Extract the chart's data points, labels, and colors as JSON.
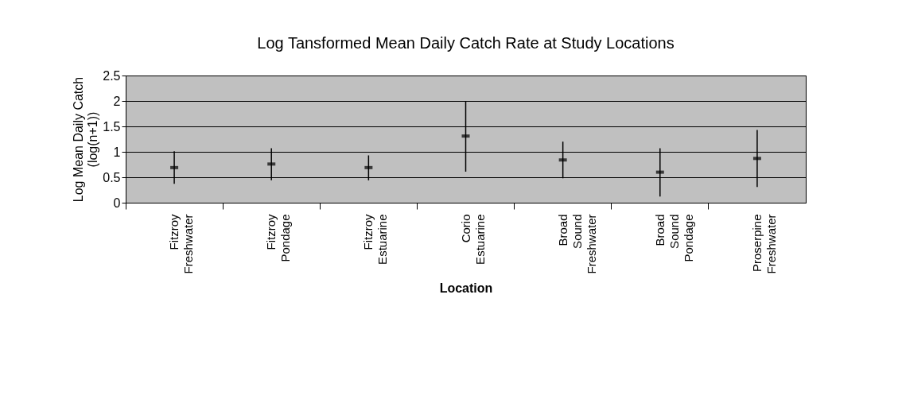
{
  "chart_data": {
    "type": "scatter",
    "title": "Log Tansformed Mean Daily Catch Rate at Study Locations",
    "xlabel": "Location",
    "ylabel": "Log Mean Daily Catch (log(n+1))",
    "categories": [
      "Fitzroy Freshwater",
      "Fitzroy Pondage",
      "Fitzroy Estuarine",
      "Corio Estuarine",
      "Broad Sound Freshwater",
      "Broad Sound Pondage",
      "Proserpine Freshwater"
    ],
    "series": [
      {
        "color": "#000000",
        "values": [
          0.69,
          0.76,
          0.69,
          1.31,
          0.84,
          0.6,
          0.87
        ],
        "errors": [
          [
            0.37,
            1.01
          ],
          [
            0.44,
            1.07
          ],
          [
            0.44,
            0.93
          ],
          [
            0.61,
            2.0
          ],
          [
            0.48,
            1.2
          ],
          [
            0.12,
            1.07
          ],
          [
            0.31,
            1.43
          ]
        ]
      }
    ],
    "ylim": [
      0,
      2.5
    ],
    "yticks": [
      0,
      0.5,
      1,
      1.5,
      2,
      2.5
    ],
    "grid": "y"
  }
}
